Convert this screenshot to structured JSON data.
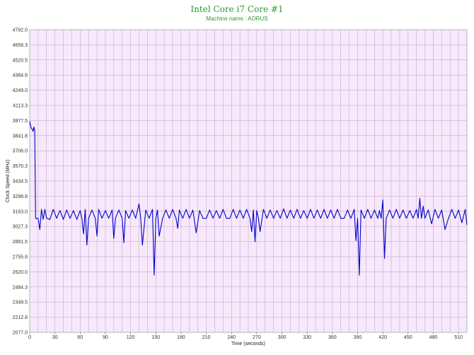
{
  "chart_data": {
    "type": "line",
    "title": "Intel Core i7 Core #1",
    "subtitle": "Machine name : AORUS",
    "xlabel": "Time (seconds)",
    "ylabel": "Clock Speed (MHz)",
    "xlim": [
      0,
      520
    ],
    "ylim": [
      2077.0,
      4792.0
    ],
    "xticks": [
      "0",
      "30",
      "60",
      "90",
      "120",
      "150",
      "180",
      "210",
      "240",
      "270",
      "300",
      "330",
      "360",
      "390",
      "420",
      "450",
      "480",
      "510"
    ],
    "yticks": [
      "2077.0",
      "2212.8",
      "2348.5",
      "2484.3",
      "2620.0",
      "2755.8",
      "2891.5",
      "3027.3",
      "3163.0",
      "3298.8",
      "3434.5",
      "3570.3",
      "3706.0",
      "3841.8",
      "3977.5",
      "4113.3",
      "4249.0",
      "4384.8",
      "4520.5",
      "4656.3",
      "4792.0"
    ],
    "grid": true,
    "series": [
      {
        "color": "#0000cc",
        "x": [
          0,
          1,
          2,
          3,
          4,
          5,
          6,
          7,
          8,
          9,
          10,
          12,
          14,
          16,
          18,
          20,
          24,
          28,
          32,
          36,
          40,
          44,
          48,
          52,
          56,
          60,
          62,
          64,
          66,
          68,
          70,
          74,
          78,
          80,
          82,
          86,
          90,
          94,
          98,
          100,
          102,
          106,
          110,
          112,
          114,
          118,
          122,
          126,
          130,
          132,
          134,
          138,
          142,
          146,
          148,
          150,
          152,
          154,
          158,
          162,
          166,
          170,
          174,
          176,
          178,
          182,
          186,
          190,
          194,
          198,
          202,
          206,
          210,
          214,
          218,
          222,
          226,
          230,
          234,
          238,
          242,
          246,
          250,
          254,
          258,
          262,
          264,
          266,
          268,
          270,
          272,
          274,
          278,
          282,
          286,
          290,
          294,
          298,
          302,
          306,
          310,
          314,
          318,
          322,
          326,
          330,
          334,
          338,
          342,
          346,
          350,
          354,
          358,
          362,
          366,
          370,
          374,
          378,
          382,
          386,
          388,
          390,
          392,
          394,
          398,
          402,
          406,
          410,
          414,
          416,
          418,
          420,
          422,
          424,
          428,
          432,
          436,
          440,
          444,
          448,
          452,
          456,
          460,
          462,
          464,
          466,
          468,
          470,
          474,
          478,
          482,
          486,
          490,
          494,
          498,
          502,
          506,
          510,
          514,
          518,
          520
        ],
        "y": [
          3970,
          3930,
          3905,
          3900,
          3880,
          3920,
          3890,
          3100,
          3095,
          3100,
          3100,
          3000,
          3180,
          3090,
          3180,
          3100,
          3090,
          3180,
          3100,
          3170,
          3090,
          3175,
          3100,
          3170,
          3090,
          3170,
          3100,
          2960,
          3180,
          2860,
          3100,
          3175,
          3100,
          2940,
          3180,
          3100,
          3170,
          3100,
          3175,
          2920,
          3100,
          3175,
          3100,
          2880,
          3170,
          3100,
          3175,
          3100,
          3230,
          3100,
          2860,
          3175,
          3100,
          3180,
          2590,
          3100,
          3175,
          2940,
          3100,
          3175,
          3100,
          3180,
          3100,
          3010,
          3175,
          3100,
          3180,
          3100,
          3175,
          2970,
          3170,
          3100,
          3100,
          3175,
          3100,
          3170,
          3100,
          3180,
          3100,
          3100,
          3180,
          3100,
          3175,
          3100,
          3180,
          3100,
          2980,
          3175,
          2890,
          3170,
          3100,
          2980,
          3180,
          3100,
          3175,
          3100,
          3170,
          3100,
          3185,
          3100,
          3175,
          3100,
          3180,
          3100,
          3170,
          3100,
          3180,
          3100,
          3175,
          3100,
          3180,
          3100,
          3175,
          3100,
          3180,
          3100,
          3100,
          3175,
          3100,
          3180,
          2900,
          3100,
          2590,
          3175,
          3100,
          3180,
          3100,
          3175,
          3100,
          3170,
          3100,
          3265,
          2740,
          3100,
          3175,
          3100,
          3180,
          3100,
          3175,
          3100,
          3170,
          3100,
          3180,
          3100,
          3280,
          3100,
          3210,
          3100,
          3175,
          3050,
          3180,
          3100,
          3175,
          3000,
          3100,
          3180,
          3100,
          3175,
          3060,
          3180,
          3040
        ]
      }
    ]
  }
}
